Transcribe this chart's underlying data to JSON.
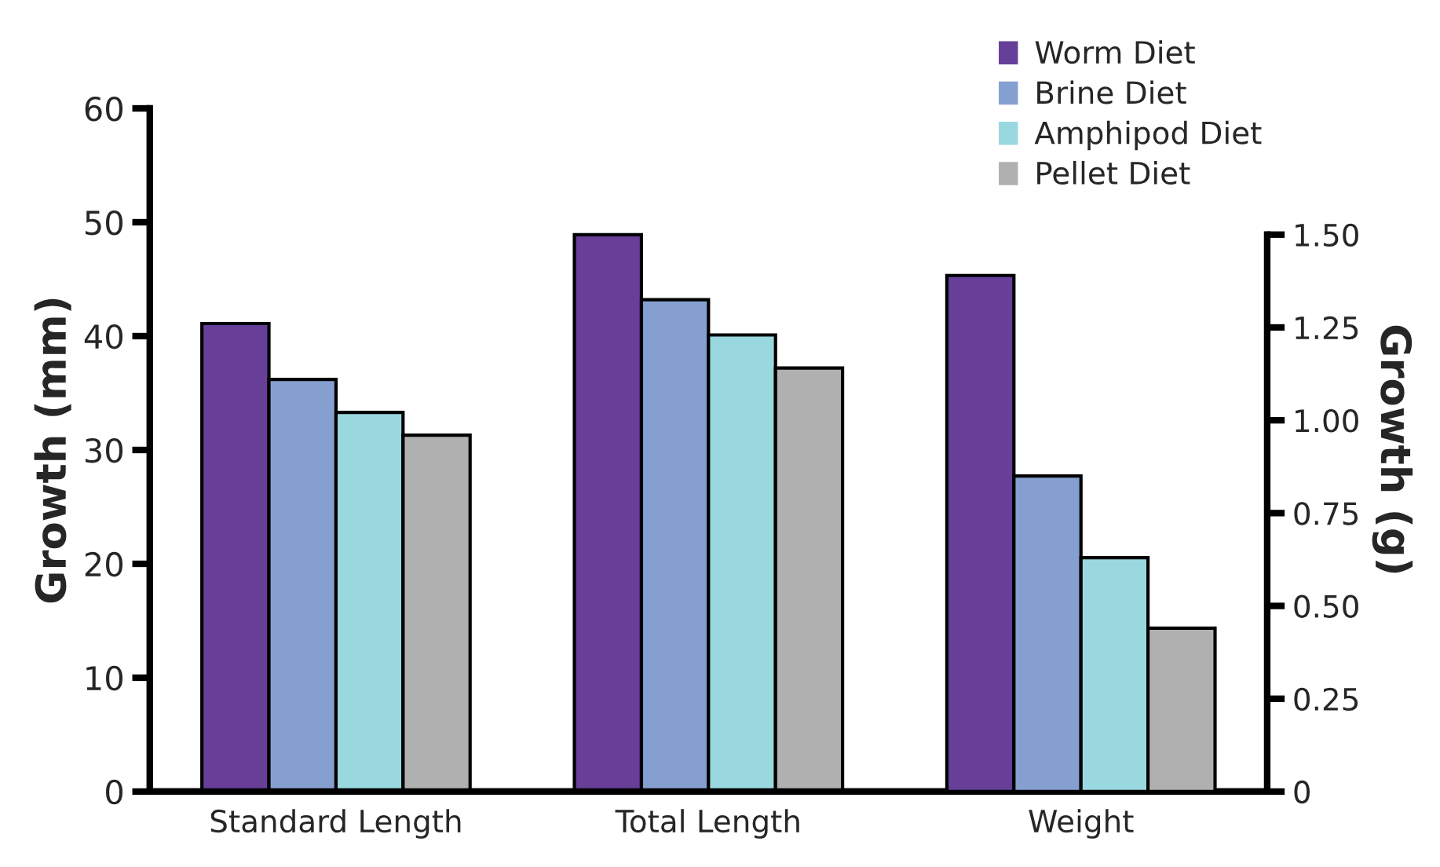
{
  "chart_data": {
    "type": "bar",
    "ylabel": "Growth (mm)",
    "y2label": "Growth (g)",
    "categories": [
      "Standard Length",
      "Total Length",
      "Weight"
    ],
    "series": [
      {
        "name": "Worm Diet",
        "color": "#673f99",
        "values": [
          41.1,
          48.9,
          null
        ]
      },
      {
        "name": "Brine Diet",
        "color": "#859fd1",
        "values": [
          36.2,
          43.2,
          null
        ]
      },
      {
        "name": "Amphipod Diet",
        "color": "#9ad8e0",
        "values": [
          33.3,
          40.1,
          null
        ]
      },
      {
        "name": "Pellet Diet",
        "color": "#b0b0b0",
        "values": [
          31.3,
          37.2,
          null
        ]
      },
      {
        "color": "#673f99",
        "axis": "y2",
        "values": [
          null,
          null,
          1.39
        ]
      },
      {
        "color": "#859fd1",
        "axis": "y2",
        "values": [
          null,
          null,
          0.85
        ]
      },
      {
        "color": "#9ad8e0",
        "axis": "y2",
        "values": [
          null,
          null,
          0.63
        ]
      },
      {
        "color": "#b0b0b0",
        "axis": "y2",
        "values": [
          null,
          null,
          0.44
        ]
      }
    ],
    "ylim": [
      0,
      60
    ],
    "yticks": [
      0,
      10,
      20,
      30,
      40,
      50,
      60
    ],
    "y2lim": [
      0,
      1.84
    ],
    "y2ticks": [
      {
        "value": 0,
        "label": "0"
      },
      {
        "value": 0.25,
        "label": "0.25"
      },
      {
        "value": 0.5,
        "label": "0.50"
      },
      {
        "value": 0.75,
        "label": "0.75"
      },
      {
        "value": 1.0,
        "label": "1.00"
      },
      {
        "value": 1.25,
        "label": "1.25"
      },
      {
        "value": 1.5,
        "label": "1.50"
      }
    ],
    "grid": false,
    "legend": "top right"
  }
}
